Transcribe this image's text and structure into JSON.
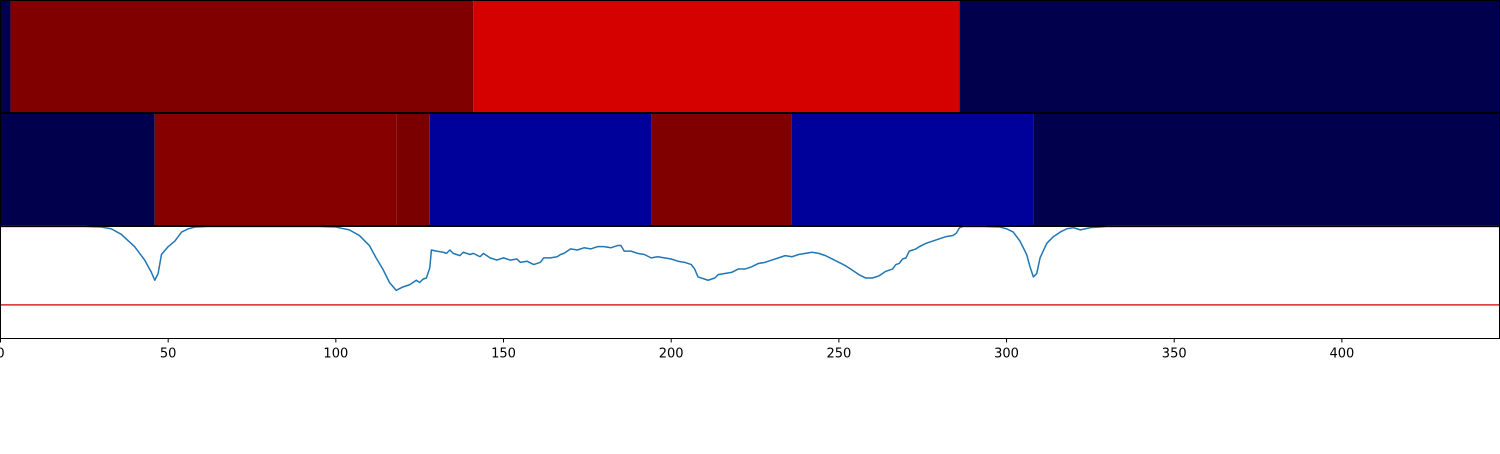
{
  "chart_data": [
    {
      "type": "heatmap",
      "colormap": "seismic",
      "xlim": [
        0,
        447
      ],
      "segments": [
        {
          "x0": 0,
          "x1": 3,
          "color": "#00004c"
        },
        {
          "x0": 3,
          "x1": 141,
          "color": "#800000"
        },
        {
          "x0": 141,
          "x1": 286,
          "color": "#d50000"
        },
        {
          "x0": 286,
          "x1": 447,
          "color": "#00004c"
        }
      ]
    },
    {
      "type": "heatmap",
      "colormap": "seismic",
      "xlim": [
        0,
        447
      ],
      "segments": [
        {
          "x0": 0,
          "x1": 46,
          "color": "#00004c"
        },
        {
          "x0": 46,
          "x1": 118,
          "color": "#860000"
        },
        {
          "x0": 118,
          "x1": 128,
          "color": "#7a0000"
        },
        {
          "x0": 128,
          "x1": 194,
          "color": "#00009a"
        },
        {
          "x0": 194,
          "x1": 236,
          "color": "#800000"
        },
        {
          "x0": 236,
          "x1": 308,
          "color": "#00009a"
        },
        {
          "x0": 308,
          "x1": 447,
          "color": "#00004c"
        }
      ]
    },
    {
      "type": "line",
      "xlim": [
        0,
        447
      ],
      "ylim": [
        0,
        1
      ],
      "grid": false,
      "x_ticks": [
        0,
        50,
        100,
        150,
        200,
        250,
        300,
        350,
        400
      ],
      "threshold": {
        "y": 0.3,
        "color": "#d62728"
      },
      "series": [
        {
          "color": "#1f77b4",
          "points": [
            [
              0,
              1.0
            ],
            [
              25,
              1.0
            ],
            [
              30,
              0.995
            ],
            [
              33,
              0.98
            ],
            [
              36,
              0.93
            ],
            [
              40,
              0.82
            ],
            [
              43,
              0.7
            ],
            [
              45,
              0.59
            ],
            [
              46,
              0.52
            ],
            [
              47,
              0.58
            ],
            [
              48,
              0.75
            ],
            [
              50,
              0.82
            ],
            [
              52,
              0.87
            ],
            [
              54,
              0.95
            ],
            [
              56,
              0.98
            ],
            [
              58,
              0.995
            ],
            [
              62,
              1.0
            ],
            [
              95,
              1.0
            ],
            [
              100,
              0.995
            ],
            [
              104,
              0.97
            ],
            [
              107,
              0.92
            ],
            [
              110,
              0.83
            ],
            [
              112,
              0.72
            ],
            [
              114,
              0.62
            ],
            [
              116,
              0.5
            ],
            [
              118,
              0.43
            ],
            [
              120,
              0.46
            ],
            [
              122,
              0.48
            ],
            [
              123,
              0.5
            ],
            [
              124,
              0.52
            ],
            [
              125,
              0.5
            ],
            [
              126,
              0.53
            ],
            [
              127,
              0.54
            ],
            [
              128,
              0.63
            ],
            [
              128.5,
              0.79
            ],
            [
              130,
              0.78
            ],
            [
              132,
              0.77
            ],
            [
              133,
              0.76
            ],
            [
              134,
              0.79
            ],
            [
              135,
              0.76
            ],
            [
              137,
              0.74
            ],
            [
              138,
              0.77
            ],
            [
              140,
              0.75
            ],
            [
              141,
              0.76
            ],
            [
              143,
              0.73
            ],
            [
              144,
              0.76
            ],
            [
              146,
              0.72
            ],
            [
              148,
              0.7
            ],
            [
              150,
              0.72
            ],
            [
              152,
              0.7
            ],
            [
              154,
              0.71
            ],
            [
              155,
              0.68
            ],
            [
              157,
              0.69
            ],
            [
              159,
              0.66
            ],
            [
              161,
              0.68
            ],
            [
              162,
              0.72
            ],
            [
              164,
              0.72
            ],
            [
              166,
              0.73
            ],
            [
              167,
              0.75
            ],
            [
              168,
              0.76
            ],
            [
              170,
              0.8
            ],
            [
              172,
              0.79
            ],
            [
              174,
              0.81
            ],
            [
              176,
              0.8
            ],
            [
              178,
              0.82
            ],
            [
              180,
              0.82
            ],
            [
              182,
              0.81
            ],
            [
              184,
              0.83
            ],
            [
              185,
              0.83
            ],
            [
              186,
              0.78
            ],
            [
              188,
              0.78
            ],
            [
              190,
              0.76
            ],
            [
              192,
              0.75
            ],
            [
              194,
              0.72
            ],
            [
              196,
              0.73
            ],
            [
              198,
              0.72
            ],
            [
              200,
              0.71
            ],
            [
              202,
              0.69
            ],
            [
              204,
              0.68
            ],
            [
              206,
              0.66
            ],
            [
              207,
              0.62
            ],
            [
              208,
              0.55
            ],
            [
              210,
              0.53
            ],
            [
              211,
              0.52
            ],
            [
              212,
              0.53
            ],
            [
              213,
              0.54
            ],
            [
              214,
              0.57
            ],
            [
              216,
              0.58
            ],
            [
              218,
              0.59
            ],
            [
              220,
              0.62
            ],
            [
              222,
              0.62
            ],
            [
              224,
              0.64
            ],
            [
              226,
              0.67
            ],
            [
              228,
              0.68
            ],
            [
              230,
              0.7
            ],
            [
              232,
              0.72
            ],
            [
              234,
              0.74
            ],
            [
              236,
              0.73
            ],
            [
              238,
              0.75
            ],
            [
              240,
              0.76
            ],
            [
              242,
              0.77
            ],
            [
              244,
              0.76
            ],
            [
              246,
              0.74
            ],
            [
              248,
              0.71
            ],
            [
              250,
              0.68
            ],
            [
              252,
              0.65
            ],
            [
              254,
              0.61
            ],
            [
              256,
              0.57
            ],
            [
              258,
              0.54
            ],
            [
              260,
              0.54
            ],
            [
              262,
              0.56
            ],
            [
              264,
              0.6
            ],
            [
              266,
              0.62
            ],
            [
              267,
              0.66
            ],
            [
              268,
              0.67
            ],
            [
              269,
              0.71
            ],
            [
              270,
              0.72
            ],
            [
              271,
              0.78
            ],
            [
              273,
              0.8
            ],
            [
              274,
              0.82
            ],
            [
              276,
              0.85
            ],
            [
              278,
              0.87
            ],
            [
              280,
              0.89
            ],
            [
              282,
              0.91
            ],
            [
              284,
              0.92
            ],
            [
              285,
              0.94
            ],
            [
              286,
              0.99
            ],
            [
              287,
              1.0
            ],
            [
              293,
              1.0
            ],
            [
              298,
              0.995
            ],
            [
              300,
              0.98
            ],
            [
              302,
              0.95
            ],
            [
              304,
              0.87
            ],
            [
              306,
              0.75
            ],
            [
              307,
              0.64
            ],
            [
              308,
              0.55
            ],
            [
              309,
              0.58
            ],
            [
              310,
              0.72
            ],
            [
              312,
              0.85
            ],
            [
              314,
              0.91
            ],
            [
              316,
              0.95
            ],
            [
              318,
              0.98
            ],
            [
              320,
              0.99
            ],
            [
              322,
              0.97
            ],
            [
              325,
              0.99
            ],
            [
              330,
              1.0
            ],
            [
              447,
              1.0
            ]
          ]
        }
      ]
    }
  ]
}
